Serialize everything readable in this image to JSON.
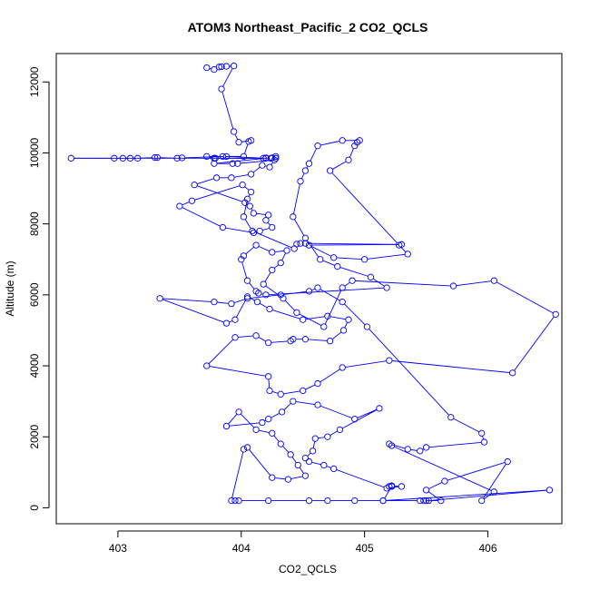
{
  "chart_data": {
    "type": "line",
    "title": "ATOM3 Northeast_Pacific_2 CO2_QCLS",
    "xlabel": "CO2_QCLS",
    "ylabel": "Altitude (m)",
    "xlim": [
      402.5,
      406.6
    ],
    "ylim": [
      -450,
      12800
    ],
    "x_ticks": [
      403,
      404,
      405,
      406
    ],
    "y_ticks": [
      0,
      2000,
      4000,
      6000,
      8000,
      10000,
      12000
    ],
    "grid": false,
    "legend": "none",
    "series_color": "#0000FF",
    "marker": "open-circle",
    "series": [
      {
        "name": "",
        "points": [
          [
            403.72,
            12400
          ],
          [
            403.78,
            12350
          ],
          [
            403.82,
            12420
          ],
          [
            403.84,
            12430
          ],
          [
            403.88,
            12440
          ],
          [
            403.94,
            12450
          ],
          [
            403.84,
            11800
          ],
          [
            403.94,
            10600
          ],
          [
            403.98,
            10300
          ],
          [
            404.08,
            10350
          ],
          [
            404.06,
            10320
          ],
          [
            404.02,
            9900
          ],
          [
            403.85,
            9900
          ],
          [
            403.72,
            9900
          ],
          [
            403.78,
            9850
          ],
          [
            403.79,
            9850
          ],
          [
            404.18,
            9850
          ],
          [
            404.2,
            9860
          ],
          [
            404.25,
            9860
          ],
          [
            404.28,
            9900
          ],
          [
            404.28,
            9850
          ],
          [
            404.24,
            9850
          ],
          [
            402.62,
            9850
          ],
          [
            402.97,
            9850
          ],
          [
            403.04,
            9850
          ],
          [
            403.1,
            9850
          ],
          [
            403.16,
            9850
          ],
          [
            403.3,
            9870
          ],
          [
            403.32,
            9870
          ],
          [
            403.48,
            9850
          ],
          [
            403.52,
            9860
          ],
          [
            403.88,
            9900
          ],
          [
            404.2,
            9850
          ],
          [
            403.78,
            9700
          ],
          [
            403.93,
            9700
          ],
          [
            403.97,
            9700
          ],
          [
            404.27,
            9800
          ],
          [
            404.23,
            9600
          ],
          [
            404.17,
            9650
          ],
          [
            404.08,
            9400
          ],
          [
            403.92,
            9300
          ],
          [
            403.8,
            9300
          ],
          [
            403.62,
            9100
          ],
          [
            404.03,
            8600
          ],
          [
            404.07,
            8500
          ],
          [
            404.1,
            8300
          ],
          [
            404.22,
            8250
          ],
          [
            404.2,
            8100
          ],
          [
            404.25,
            7900
          ],
          [
            404.15,
            7800
          ],
          [
            404.1,
            7750
          ],
          [
            403.85,
            7900
          ],
          [
            403.5,
            8500
          ],
          [
            403.6,
            8650
          ],
          [
            404.01,
            9100
          ],
          [
            404.08,
            8900
          ],
          [
            404.05,
            8700
          ],
          [
            404.02,
            8200
          ],
          [
            404.09,
            7800
          ],
          [
            404.43,
            7300
          ],
          [
            404.45,
            7430
          ],
          [
            404.48,
            7450
          ],
          [
            404.52,
            7450
          ],
          [
            405.3,
            7420
          ],
          [
            404.55,
            7400
          ],
          [
            404.75,
            7050
          ],
          [
            405.0,
            7000
          ],
          [
            405.35,
            7150
          ],
          [
            405.28,
            7400
          ],
          [
            404.72,
            9500
          ],
          [
            404.87,
            9800
          ],
          [
            404.92,
            10200
          ],
          [
            404.94,
            10300
          ],
          [
            404.96,
            10350
          ],
          [
            404.82,
            10350
          ],
          [
            404.62,
            10200
          ],
          [
            404.55,
            9700
          ],
          [
            404.52,
            9500
          ],
          [
            404.48,
            9200
          ],
          [
            404.42,
            8200
          ],
          [
            404.52,
            7600
          ],
          [
            404.64,
            7000
          ],
          [
            404.78,
            6800
          ],
          [
            405.05,
            6500
          ],
          [
            405.18,
            6200
          ],
          [
            404.2,
            6000
          ],
          [
            404.14,
            6050
          ],
          [
            404.12,
            6100
          ],
          [
            404.05,
            6400
          ],
          [
            404.0,
            7000
          ],
          [
            404.02,
            7100
          ],
          [
            404.12,
            7400
          ],
          [
            404.25,
            7200
          ],
          [
            404.37,
            7250
          ],
          [
            404.32,
            6900
          ],
          [
            404.25,
            6700
          ],
          [
            404.18,
            6300
          ],
          [
            404.34,
            5900
          ],
          [
            404.45,
            5500
          ],
          [
            404.67,
            5100
          ],
          [
            404.82,
            6200
          ],
          [
            404.9,
            6400
          ],
          [
            405.72,
            6250
          ],
          [
            406.05,
            6400
          ],
          [
            406.55,
            5450
          ],
          [
            406.2,
            3800
          ],
          [
            405.2,
            4150
          ],
          [
            404.82,
            3950
          ],
          [
            404.62,
            3500
          ],
          [
            404.5,
            3300
          ],
          [
            404.32,
            3200
          ],
          [
            404.23,
            3300
          ],
          [
            404.22,
            3700
          ],
          [
            403.72,
            4000
          ],
          [
            403.95,
            4800
          ],
          [
            404.12,
            4850
          ],
          [
            404.22,
            4650
          ],
          [
            404.4,
            4700
          ],
          [
            404.42,
            4750
          ],
          [
            404.52,
            4750
          ],
          [
            404.72,
            4700
          ],
          [
            404.83,
            5000
          ],
          [
            404.87,
            5300
          ],
          [
            404.7,
            5400
          ],
          [
            404.5,
            5300
          ],
          [
            404.23,
            5600
          ],
          [
            404.13,
            5800
          ],
          [
            404.05,
            5950
          ],
          [
            403.95,
            5300
          ],
          [
            403.88,
            5200
          ],
          [
            403.34,
            5900
          ],
          [
            403.78,
            5800
          ],
          [
            403.92,
            5750
          ],
          [
            404.05,
            5900
          ],
          [
            404.32,
            6000
          ],
          [
            404.55,
            6100
          ],
          [
            404.62,
            6200
          ],
          [
            404.82,
            5800
          ],
          [
            405.02,
            5100
          ],
          [
            405.7,
            2550
          ],
          [
            405.95,
            2100
          ],
          [
            405.97,
            1850
          ],
          [
            405.5,
            1700
          ],
          [
            405.45,
            1600
          ],
          [
            405.35,
            1650
          ],
          [
            405.2,
            1800
          ],
          [
            405.22,
            1750
          ],
          [
            406.05,
            450
          ],
          [
            405.95,
            200
          ],
          [
            406.16,
            1300
          ],
          [
            405.65,
            750
          ],
          [
            405.5,
            500
          ],
          [
            405.62,
            200
          ],
          [
            405.48,
            200
          ],
          [
            405.45,
            200
          ],
          [
            405.15,
            200
          ],
          [
            405.22,
            600
          ],
          [
            405.2,
            600
          ],
          [
            405.22,
            620
          ],
          [
            405.3,
            600
          ],
          [
            405.18,
            550
          ],
          [
            404.75,
            1100
          ],
          [
            404.67,
            1200
          ],
          [
            404.55,
            1300
          ],
          [
            404.52,
            1400
          ],
          [
            404.58,
            1600
          ],
          [
            404.6,
            1950
          ],
          [
            404.7,
            2000
          ],
          [
            404.8,
            2200
          ],
          [
            405.12,
            2800
          ],
          [
            404.92,
            2500
          ],
          [
            404.62,
            2900
          ],
          [
            404.42,
            3000
          ],
          [
            404.33,
            2700
          ],
          [
            404.22,
            2500
          ],
          [
            404.17,
            2400
          ],
          [
            403.88,
            2300
          ],
          [
            403.98,
            2700
          ],
          [
            404.12,
            2200
          ],
          [
            404.25,
            2100
          ],
          [
            404.32,
            1800
          ],
          [
            404.4,
            1500
          ],
          [
            404.46,
            1200
          ],
          [
            404.52,
            900
          ],
          [
            404.38,
            800
          ],
          [
            404.25,
            850
          ],
          [
            404.05,
            1700
          ],
          [
            404.02,
            1650
          ],
          [
            403.92,
            200
          ],
          [
            403.95,
            200
          ],
          [
            403.98,
            200
          ],
          [
            404.22,
            200
          ],
          [
            404.55,
            200
          ],
          [
            404.7,
            200
          ],
          [
            404.92,
            200
          ],
          [
            405.15,
            200
          ],
          [
            406.5,
            500
          ],
          [
            405.52,
            200
          ],
          [
            405.5,
            200
          ]
        ]
      }
    ]
  }
}
